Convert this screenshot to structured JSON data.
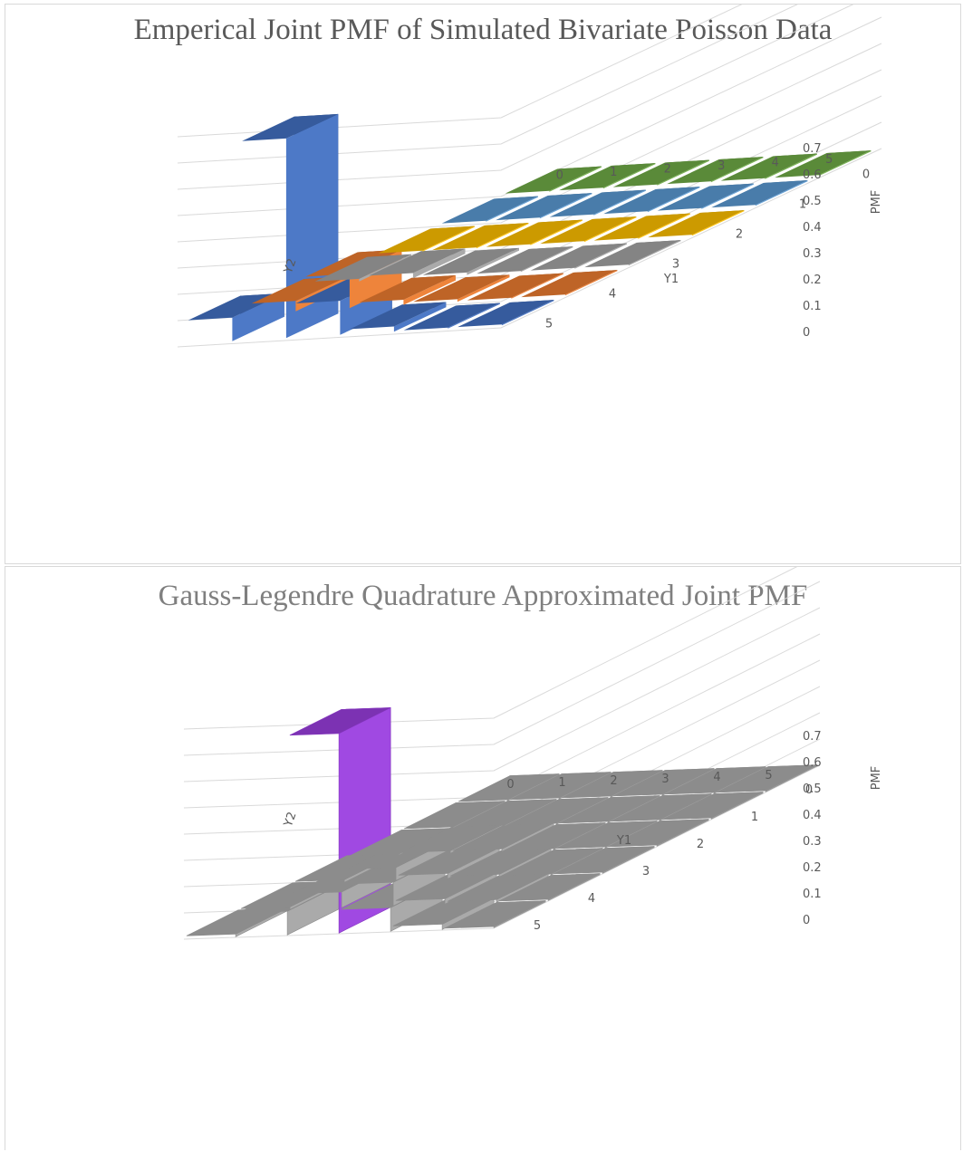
{
  "colors": {
    "grid": "#d9d9d9",
    "chart1_rows": [
      "#4472c4",
      "#ed7d31",
      "#a5a5a5",
      "#ffc000",
      "#5b9bd5",
      "#70ad47"
    ],
    "chart2_legend": {
      "0.0-0.1": "#a5a5a5",
      "0.1-0.2": "#ffd966",
      "0.2-0.3": "#a9d18e",
      "0.3-0.4": "#00b050",
      "0.4-0.5": "#0070c0",
      "0.7-0.8": "#9b3fe0"
    }
  },
  "chart_data": [
    {
      "type": "bar3d",
      "title": "Emperical Joint PMF of Simulated Bivariate Poisson Data",
      "xlabel": "Y1",
      "ylabel": "Y2",
      "zlabel": "PMF",
      "x_categories": [
        "0",
        "1",
        "2",
        "3",
        "4",
        "5"
      ],
      "y_categories": [
        "0",
        "1",
        "2",
        "3",
        "4",
        "5"
      ],
      "z_ticks": [
        "0",
        "0.1",
        "0.2",
        "0.3",
        "0.4",
        "0.5",
        "0.6",
        "0.7"
      ],
      "zlim": [
        0,
        0.8
      ],
      "grid": true,
      "values": [
        [
          0.09,
          0.04,
          0.01,
          0.0,
          0.0,
          0.0
        ],
        [
          0.76,
          0.13,
          0.02,
          0.0,
          0.0,
          0.0
        ],
        [
          0.13,
          0.02,
          0.01,
          0.0,
          0.0,
          0.0
        ],
        [
          0.02,
          0.01,
          0.0,
          0.0,
          0.0,
          0.0
        ],
        [
          0.0,
          0.0,
          0.0,
          0.0,
          0.0,
          0.0
        ],
        [
          0.0,
          0.0,
          0.0,
          0.0,
          0.0,
          0.0
        ]
      ]
    },
    {
      "type": "bar3d",
      "title": "Gauss-Legendre Quadrature Approximated Joint PMF",
      "xlabel": "Y1",
      "ylabel": "Y2",
      "zlabel": "PMF",
      "x_categories": [
        "0",
        "1",
        "2",
        "3",
        "4",
        "5"
      ],
      "y_categories": [
        "0",
        "1",
        "2",
        "3",
        "4",
        "5"
      ],
      "z_ticks": [
        "0",
        "0.1",
        "0.2",
        "0.3",
        "0.4",
        "0.5",
        "0.6",
        "0.7"
      ],
      "zlim": [
        0,
        0.8
      ],
      "grid": true,
      "values": [
        [
          0.01,
          0.01,
          0.01,
          0.0,
          0.0,
          0.0
        ],
        [
          0.09,
          0.06,
          0.05,
          0.01,
          0.0,
          0.0
        ],
        [
          0.76,
          0.09,
          0.02,
          0.01,
          0.0,
          0.0
        ],
        [
          0.09,
          0.02,
          0.01,
          0.0,
          0.0,
          0.0
        ],
        [
          0.02,
          0.01,
          0.0,
          0.0,
          0.0,
          0.0
        ],
        [
          0.0,
          0.0,
          0.0,
          0.0,
          0.0,
          0.0
        ]
      ]
    }
  ]
}
